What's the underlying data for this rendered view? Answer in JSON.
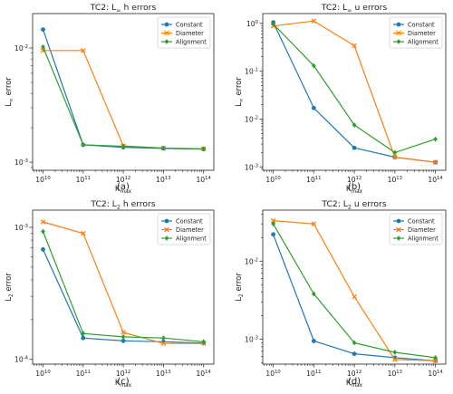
{
  "chart_data": [
    {
      "type": "line",
      "panel_label": "(a)",
      "title": "TC2: L∞ h errors",
      "xlabel": "Kmax",
      "ylabel": "L∞ error",
      "xscale": "log",
      "yscale": "log",
      "x": [
        10000000000.0,
        100000000000.0,
        1000000000000.0,
        10000000000000.0,
        100000000000000.0
      ],
      "x_tick_labels": [
        "10^10",
        "10^11",
        "10^12",
        "10^13",
        "10^14"
      ],
      "xlim": [
        5500000000.0,
        180000000000000.0
      ],
      "ylim": [
        0.00085,
        0.02
      ],
      "y_ticks": [
        0.001,
        0.01
      ],
      "y_tick_labels": [
        "10^-3",
        "10^-2"
      ],
      "legend_position": "upper right",
      "grid": false,
      "series": [
        {
          "name": "Constant",
          "color": "#1f77b4",
          "marker": "circle",
          "values": [
            0.0145,
            0.00142,
            0.00135,
            0.00132,
            0.0013
          ]
        },
        {
          "name": "Diameter",
          "color": "#ff7f0e",
          "marker": "x",
          "values": [
            0.0095,
            0.0095,
            0.00139,
            0.00133,
            0.00131
          ]
        },
        {
          "name": "Alignment",
          "color": "#2ca02c",
          "marker": "diamond",
          "values": [
            0.0102,
            0.00142,
            0.00138,
            0.00133,
            0.00131
          ]
        }
      ]
    },
    {
      "type": "line",
      "panel_label": "(b)",
      "title": "TC2: L∞ u errors",
      "xlabel": "Kmax",
      "ylabel": "L∞ error",
      "xscale": "log",
      "yscale": "log",
      "x": [
        10000000000.0,
        100000000000.0,
        1000000000000.0,
        10000000000000.0,
        100000000000000.0
      ],
      "x_tick_labels": [
        "10^10",
        "10^11",
        "10^12",
        "10^13",
        "10^14"
      ],
      "xlim": [
        5500000000.0,
        180000000000000.0
      ],
      "ylim": [
        0.00085,
        1.6
      ],
      "y_ticks": [
        0.001,
        0.01,
        0.1,
        1
      ],
      "y_tick_labels": [
        "10^-3",
        "10^-2",
        "10^-1",
        "10^0"
      ],
      "legend_position": "upper right",
      "grid": false,
      "series": [
        {
          "name": "Constant",
          "color": "#1f77b4",
          "marker": "circle",
          "values": [
            1.05,
            0.017,
            0.0025,
            0.0016,
            0.00125
          ]
        },
        {
          "name": "Diameter",
          "color": "#ff7f0e",
          "marker": "x",
          "values": [
            0.88,
            1.12,
            0.34,
            0.0016,
            0.00125
          ]
        },
        {
          "name": "Alignment",
          "color": "#2ca02c",
          "marker": "diamond",
          "values": [
            0.97,
            0.13,
            0.0075,
            0.002,
            0.0038
          ]
        }
      ]
    },
    {
      "type": "line",
      "panel_label": "(c)",
      "title": "TC2: L2 h errors",
      "xlabel": "Kmax",
      "ylabel": "L2 error",
      "xscale": "log",
      "yscale": "log",
      "x": [
        10000000000.0,
        100000000000.0,
        1000000000000.0,
        10000000000000.0,
        100000000000000.0
      ],
      "x_tick_labels": [
        "10^10",
        "10^11",
        "10^12",
        "10^13",
        "10^14"
      ],
      "xlim": [
        5500000000.0,
        180000000000000.0
      ],
      "ylim": [
        9.2e-05,
        0.00135
      ],
      "y_ticks": [
        0.0001,
        0.001
      ],
      "y_tick_labels": [
        "10^-4",
        "10^-3"
      ],
      "legend_position": "upper right",
      "grid": false,
      "series": [
        {
          "name": "Constant",
          "color": "#1f77b4",
          "marker": "circle",
          "values": [
            0.00068,
            0.000145,
            0.000138,
            0.000136,
            0.000133
          ]
        },
        {
          "name": "Diameter",
          "color": "#ff7f0e",
          "marker": "x",
          "values": [
            0.0011,
            0.0009,
            0.00016,
            0.000132,
            0.000132
          ]
        },
        {
          "name": "Alignment",
          "color": "#2ca02c",
          "marker": "diamond",
          "values": [
            0.00093,
            0.000157,
            0.000148,
            0.000145,
            0.000136
          ]
        }
      ]
    },
    {
      "type": "line",
      "panel_label": "(d)",
      "title": "TC2: L2 u errors",
      "xlabel": "Kmax",
      "ylabel": "L2 error",
      "xscale": "log",
      "yscale": "log",
      "x": [
        10000000000.0,
        100000000000.0,
        1000000000000.0,
        10000000000000.0,
        100000000000000.0
      ],
      "x_tick_labels": [
        "10^10",
        "10^11",
        "10^12",
        "10^13",
        "10^14"
      ],
      "xlim": [
        5500000000.0,
        180000000000000.0
      ],
      "ylim": [
        0.00048,
        0.045
      ],
      "y_ticks": [
        0.001,
        0.01
      ],
      "y_tick_labels": [
        "10^-3",
        "10^-2"
      ],
      "legend_position": "upper right",
      "grid": false,
      "series": [
        {
          "name": "Constant",
          "color": "#1f77b4",
          "marker": "circle",
          "values": [
            0.022,
            0.00095,
            0.00065,
            0.00058,
            0.00053
          ]
        },
        {
          "name": "Diameter",
          "color": "#ff7f0e",
          "marker": "x",
          "values": [
            0.033,
            0.03,
            0.0035,
            0.00055,
            0.00053
          ]
        },
        {
          "name": "Alignment",
          "color": "#2ca02c",
          "marker": "diamond",
          "values": [
            0.03,
            0.0038,
            0.0009,
            0.00068,
            0.00058
          ]
        }
      ]
    }
  ]
}
